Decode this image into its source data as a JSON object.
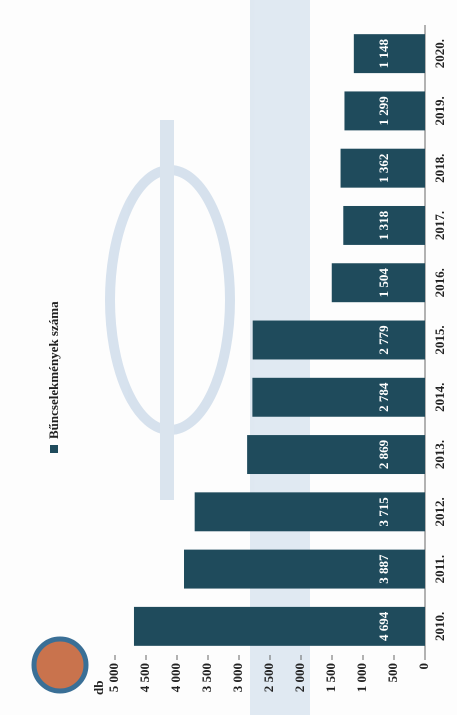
{
  "chart_data": {
    "type": "bar",
    "y_label": "db",
    "categories": [
      "2010.",
      "2011.",
      "2012.",
      "2013.",
      "2014.",
      "2015.",
      "2016.",
      "2017.",
      "2018.",
      "2019.",
      "2020."
    ],
    "series": [
      {
        "name": "Bűncselekmények száma",
        "color": "#1f4b5c",
        "values": [
          4694,
          3887,
          3715,
          2869,
          2784,
          2779,
          1504,
          1318,
          1362,
          1299,
          1148
        ],
        "value_labels": [
          "4 694",
          "3 887",
          "3 715",
          "2 869",
          "2 784",
          "2 779",
          "1 504",
          "1 318",
          "1 362",
          "1 299",
          "1 148"
        ]
      }
    ],
    "ylim": [
      0,
      5000
    ],
    "yticks": [
      0,
      500,
      {
        "value": 1000,
        "label": "1 000"
      },
      {
        "value": 1500,
        "label": "1 500"
      },
      {
        "value": 2000,
        "label": "2 000"
      },
      {
        "value": 2500,
        "label": "2 500"
      },
      {
        "value": 3000,
        "label": "3 000"
      },
      {
        "value": 3500,
        "label": "3 500"
      },
      {
        "value": 4000,
        "label": "4 000"
      },
      {
        "value": 4500,
        "label": "4 500"
      },
      {
        "value": 5000,
        "label": "5 000"
      }
    ],
    "legend": "top"
  }
}
